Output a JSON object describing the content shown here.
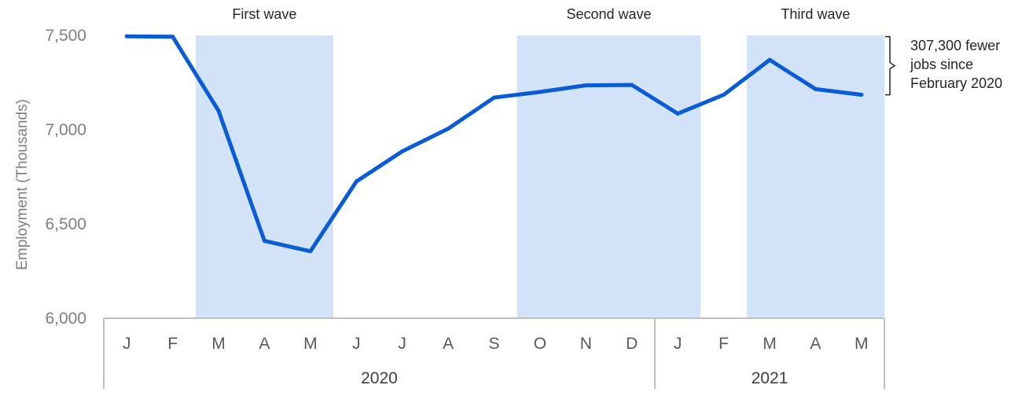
{
  "chart_data": {
    "type": "line",
    "ylabel": "Employment (Thousands)",
    "ylim": [
      6000,
      7500
    ],
    "yticks": [
      "6,000",
      "6,500",
      "7,000",
      "7,500"
    ],
    "ytick_values": [
      6000,
      6500,
      7000,
      7500
    ],
    "categories": [
      "J",
      "F",
      "M",
      "A",
      "M",
      "J",
      "J",
      "A",
      "S",
      "O",
      "N",
      "D",
      "J",
      "F",
      "M",
      "A",
      "M"
    ],
    "year_groups": [
      {
        "label": "2020",
        "start": 0,
        "end": 11
      },
      {
        "label": "2021",
        "start": 12,
        "end": 16
      }
    ],
    "series": [
      {
        "values": [
          7495,
          7493,
          7100,
          6410,
          6355,
          6725,
          6885,
          7005,
          7170,
          7200,
          7235,
          7237,
          7085,
          7185,
          7370,
          7215,
          7185
        ],
        "color": "#0a5bd6"
      }
    ],
    "bands": [
      {
        "label": "First wave",
        "start": 2,
        "end": 4
      },
      {
        "label": "Second wave",
        "start": 9,
        "end": 12
      },
      {
        "label": "Third wave",
        "start": 14,
        "end": 16
      }
    ],
    "band_color": "#d3e4fa",
    "annotation": {
      "lines": [
        "307,300 fewer",
        "jobs since",
        "February 2020"
      ],
      "from_value": 7493,
      "to_value": 7185
    },
    "grid": false
  }
}
